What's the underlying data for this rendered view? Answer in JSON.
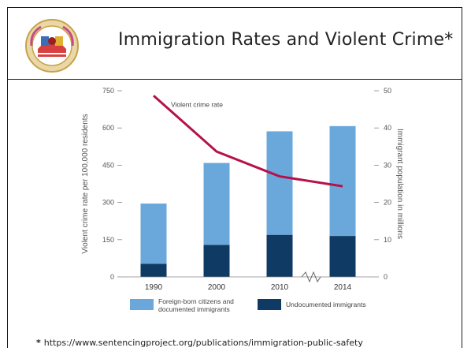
{
  "slide": {
    "title": "Immigration Rates and Violent Crime",
    "title_star": "*",
    "footnote_star": "*",
    "footnote_url": "https://www.sentencingproject.org/publications/immigration-public-safety"
  },
  "colors": {
    "documented": "#6aa8dc",
    "undocumented": "#0f3a63",
    "crime_line": "#b5124a",
    "axis": "#888888"
  },
  "chart_data": {
    "type": "bar",
    "stacked": true,
    "categories": [
      "1990",
      "2000",
      "2010",
      "2014"
    ],
    "series": [
      {
        "name": "Undocumented immigrants",
        "axis": "right",
        "values": [
          3.5,
          8.6,
          11.3,
          11.0
        ]
      },
      {
        "name": "Foreign-born citizens and documented immigrants",
        "axis": "right",
        "values": [
          16.2,
          22.0,
          27.8,
          29.5
        ]
      },
      {
        "name": "Violent crime rate",
        "type": "line",
        "axis": "left",
        "values": [
          730,
          505,
          405,
          365
        ]
      }
    ],
    "line_label": "Violent crime rate",
    "ylabel_left": "Violent crime rate per 100,000 residents",
    "ylabel_right": "Immigrant population in millions",
    "ylim_left": [
      0,
      750
    ],
    "ylim_right": [
      0,
      50
    ],
    "yticks_left": [
      "0",
      "150",
      "300",
      "450",
      "600",
      "750"
    ],
    "yticks_right": [
      "0",
      "10",
      "20",
      "30",
      "40",
      "50"
    ],
    "axis_break_between": [
      "2010",
      "2014"
    ],
    "legend": [
      {
        "label_line1": "Foreign-born citizens and",
        "label_line2": "documented immigrants"
      },
      {
        "label_line1": "Undocumented immigrants"
      }
    ],
    "legend_position": "bottom",
    "grid": false
  }
}
